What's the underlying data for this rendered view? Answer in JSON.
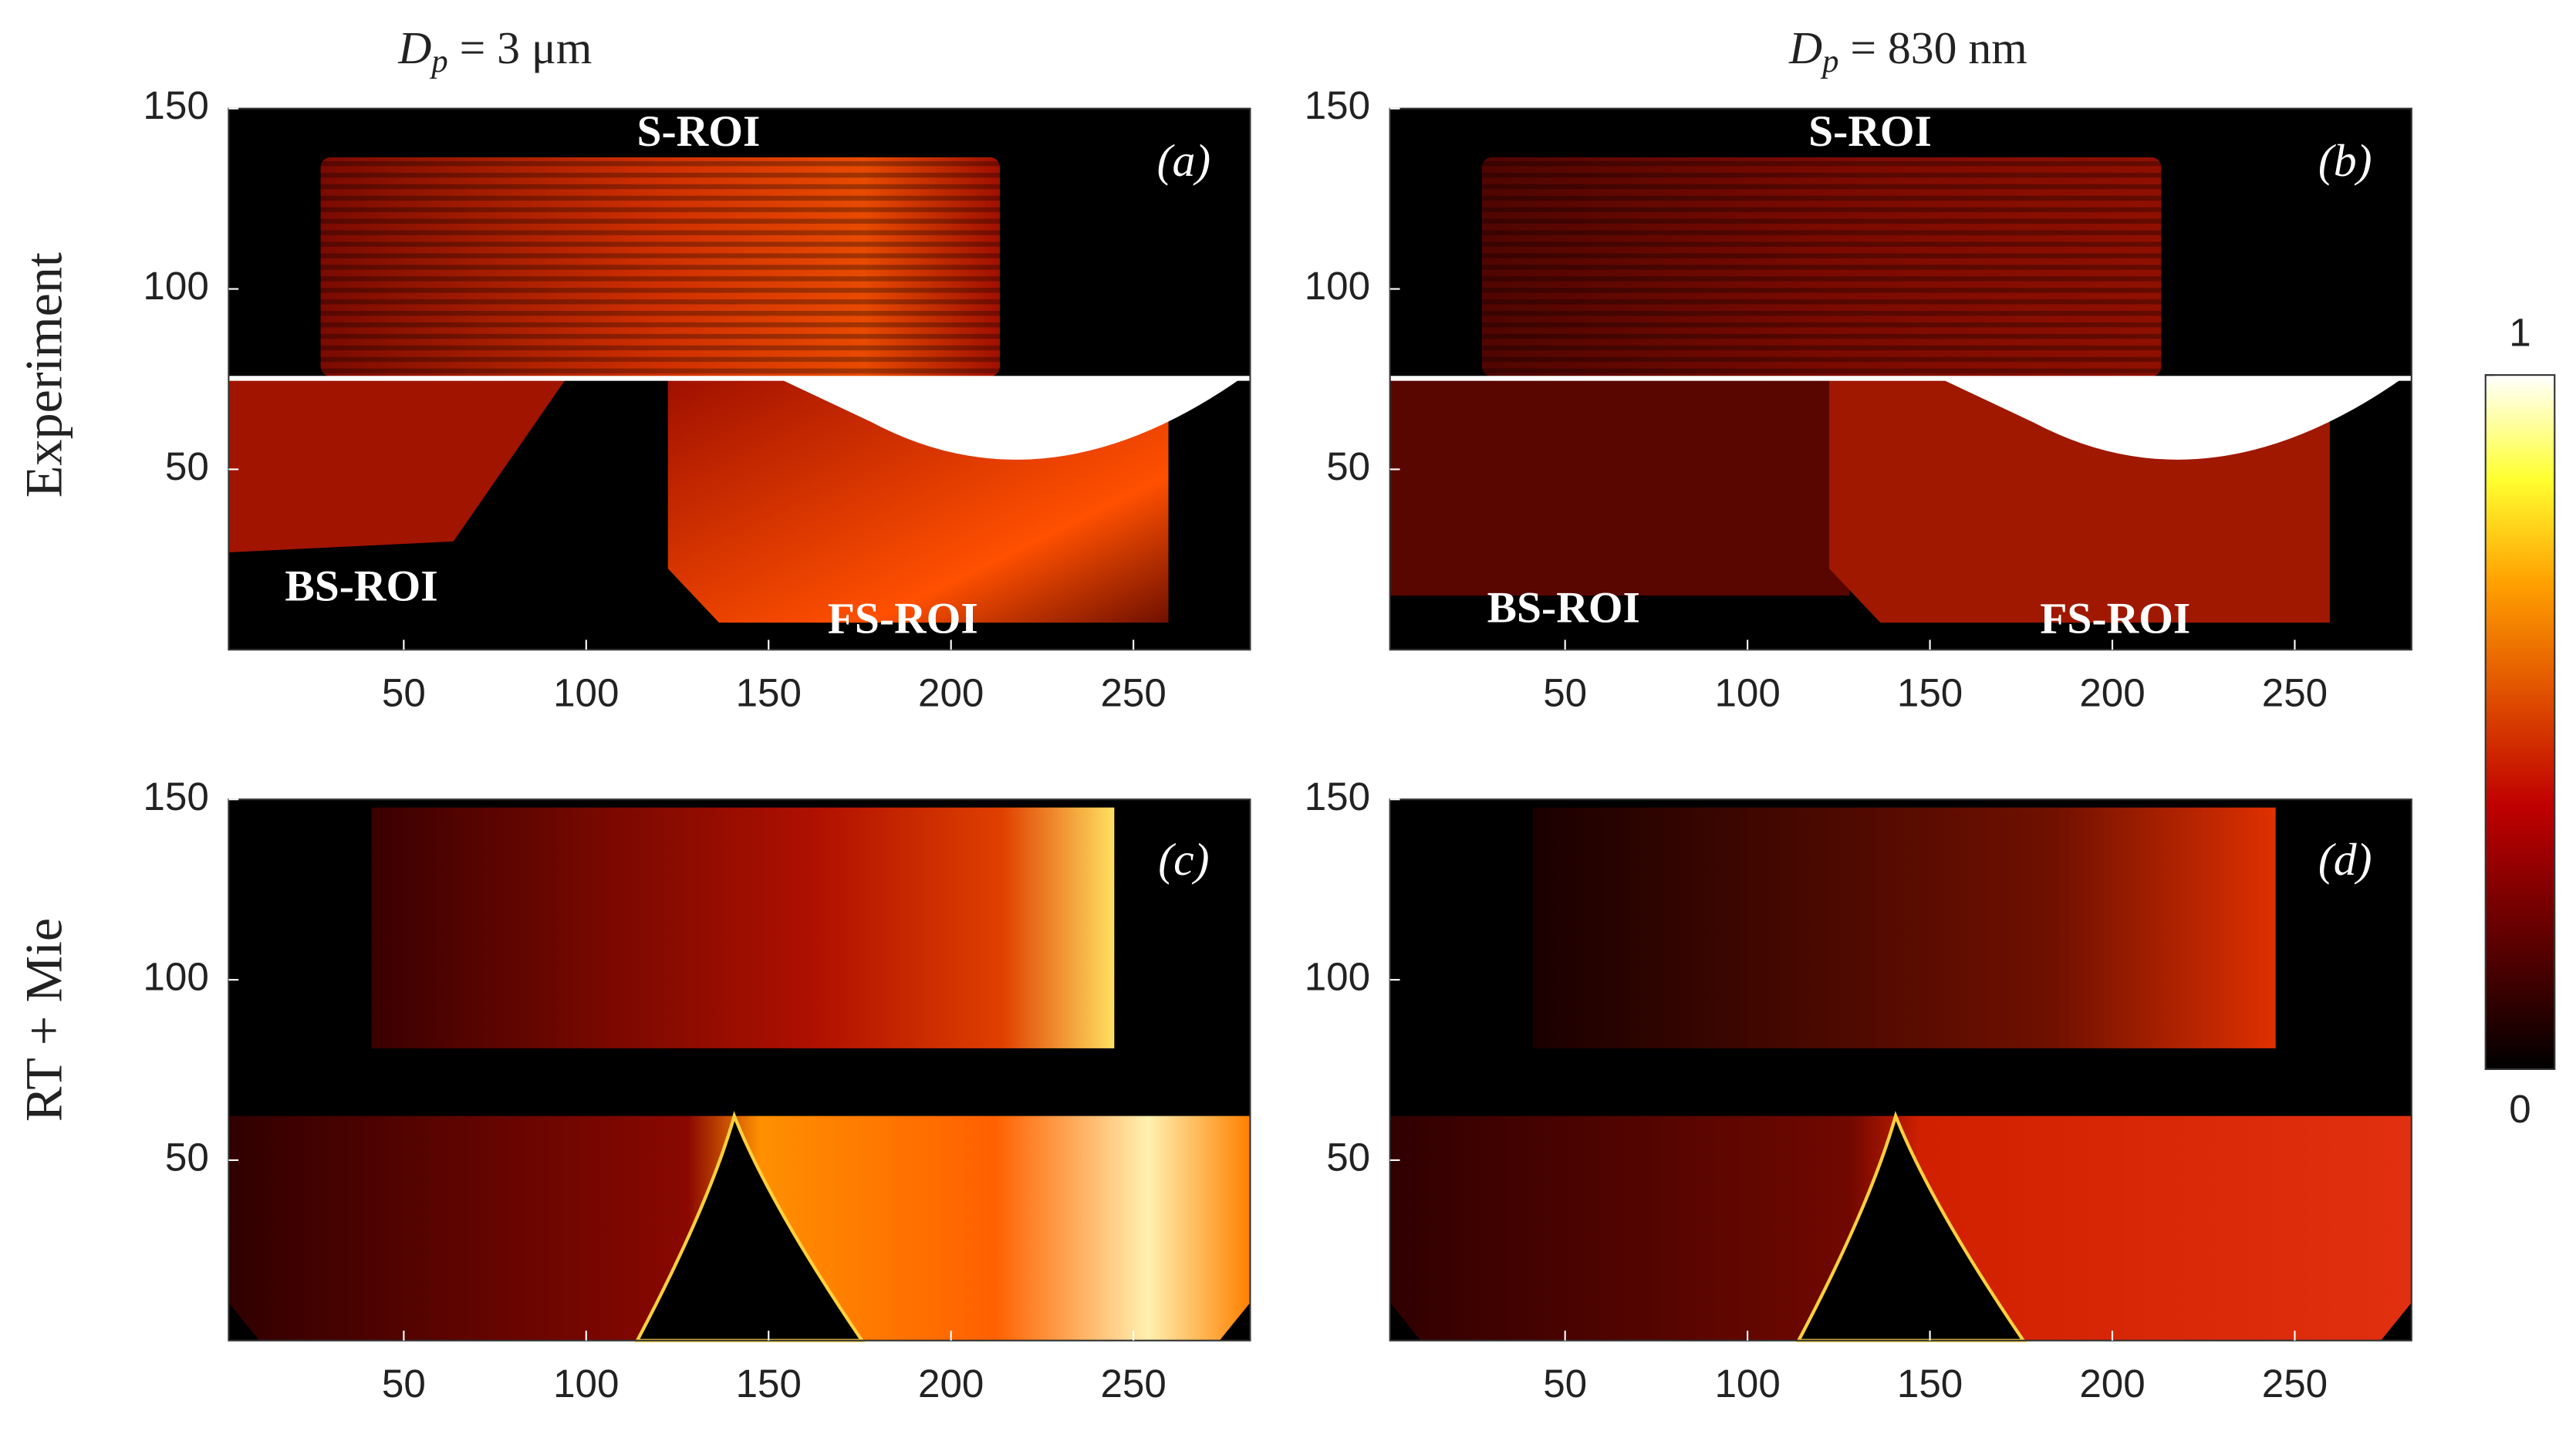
{
  "column_titles": [
    {
      "symbol": "D",
      "subscript": "p",
      "rest": " = 3 μm"
    },
    {
      "symbol": "D",
      "subscript": "p",
      "rest": " = 830 nm"
    }
  ],
  "row_labels": [
    "Experiment",
    "RT + Mie"
  ],
  "colorbar": {
    "clim": [
      0,
      1
    ],
    "ticks": [
      0,
      1
    ]
  },
  "chart_data": [
    {
      "type": "heatmap",
      "panel_label": "(a)",
      "annotations": [
        "S-ROI",
        "BS-ROI",
        "FS-ROI"
      ],
      "xlim": [
        2,
        282
      ],
      "ylim": [
        0,
        150
      ],
      "xticks": [
        50,
        100,
        150,
        200,
        250
      ],
      "yticks": [
        50,
        100,
        150
      ]
    },
    {
      "type": "heatmap",
      "panel_label": "(b)",
      "annotations": [
        "S-ROI",
        "BS-ROI",
        "FS-ROI"
      ],
      "xlim": [
        2,
        282
      ],
      "ylim": [
        0,
        150
      ],
      "xticks": [
        50,
        100,
        150,
        200,
        250
      ],
      "yticks": [
        50,
        100,
        150
      ]
    },
    {
      "type": "heatmap",
      "panel_label": "(c)",
      "xlim": [
        2,
        282
      ],
      "ylim": [
        0,
        150
      ],
      "xticks": [
        50,
        100,
        150,
        200,
        250
      ],
      "yticks": [
        50,
        100,
        150
      ]
    },
    {
      "type": "heatmap",
      "panel_label": "(d)",
      "xlim": [
        2,
        282
      ],
      "ylim": [
        0,
        150
      ],
      "xticks": [
        50,
        100,
        150,
        200,
        250
      ],
      "yticks": [
        50,
        100,
        150
      ]
    }
  ]
}
